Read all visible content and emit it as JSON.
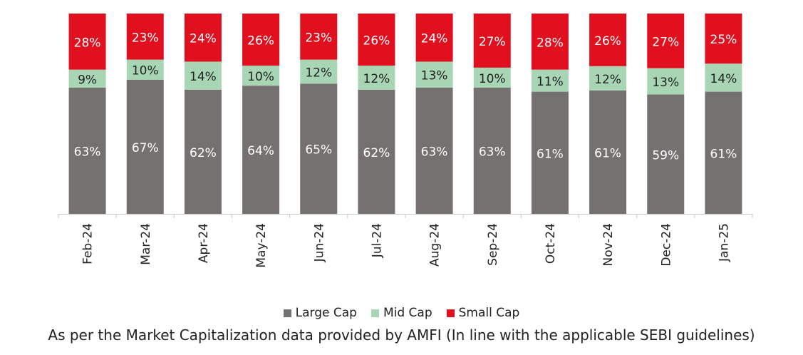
{
  "chart_data": {
    "type": "bar",
    "stacked": true,
    "normalized": true,
    "categories": [
      "Feb-24",
      "Mar-24",
      "Apr-24",
      "May-24",
      "Jun-24",
      "Jul-24",
      "Aug-24",
      "Sep-24",
      "Oct-24",
      "Nov-24",
      "Dec-24",
      "Jan-25"
    ],
    "series": [
      {
        "name": "Large Cap",
        "color": "#767171",
        "values": [
          63,
          67,
          62,
          64,
          65,
          62,
          63,
          63,
          61,
          61,
          59,
          61
        ]
      },
      {
        "name": "Mid Cap",
        "color": "#a8d5b4",
        "values": [
          9,
          10,
          14,
          10,
          12,
          12,
          13,
          10,
          11,
          12,
          13,
          14
        ]
      },
      {
        "name": "Small Cap",
        "color": "#e0101f",
        "values": [
          28,
          23,
          24,
          26,
          23,
          26,
          24,
          27,
          28,
          26,
          27,
          25
        ]
      }
    ],
    "value_suffix": "%",
    "legend_position": "bottom",
    "grid": false
  },
  "note": "As per the Market Capitalization data provided by AMFI (In line with the applicable SEBI guidelines)"
}
